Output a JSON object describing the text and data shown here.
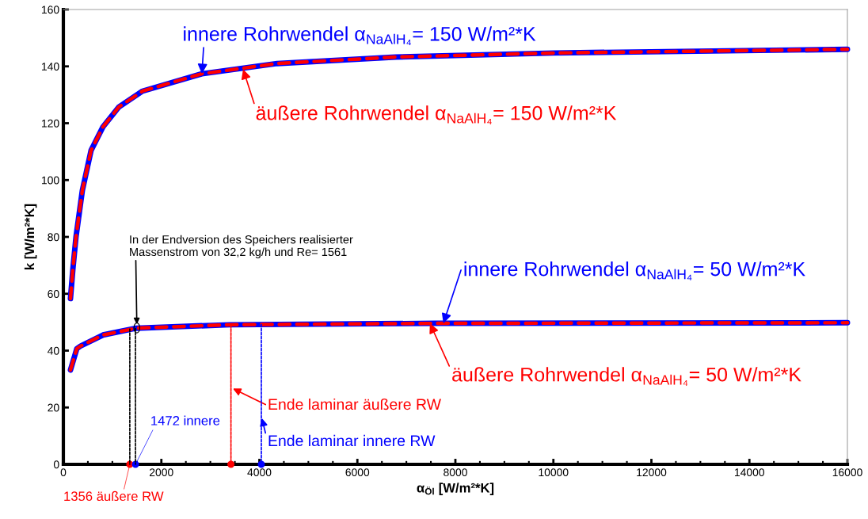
{
  "chart_data": {
    "type": "line",
    "xlabel": "α$_{Öl}$ [W/m²*K]",
    "ylabel": "k [W/m²*K]",
    "xlim": [
      0,
      16000
    ],
    "ylim": [
      0,
      160
    ],
    "xticks": [
      0,
      {
        "value": 500,
        "label": null
      },
      {
        "value": 1000,
        "label": null
      },
      {
        "value": 1500,
        "label": null
      },
      2000,
      {
        "value": 2500,
        "label": null
      },
      {
        "value": 3000,
        "label": null
      },
      {
        "value": 3500,
        "label": null
      },
      4000,
      {
        "value": 4500,
        "label": null
      },
      {
        "value": 5000,
        "label": null
      },
      {
        "value": 5500,
        "label": null
      },
      6000,
      {
        "value": 6500,
        "label": null
      },
      {
        "value": 7000,
        "label": null
      },
      {
        "value": 7500,
        "label": null
      },
      8000,
      {
        "value": 8500,
        "label": null
      },
      {
        "value": 9000,
        "label": null
      },
      {
        "value": 9500,
        "label": null
      },
      10000,
      {
        "value": 10500,
        "label": null
      },
      {
        "value": 11000,
        "label": null
      },
      {
        "value": 11500,
        "label": null
      },
      12000,
      {
        "value": 12500,
        "label": null
      },
      {
        "value": 13000,
        "label": null
      },
      {
        "value": 13500,
        "label": null
      },
      14000,
      {
        "value": 14500,
        "label": null
      },
      {
        "value": 15000,
        "label": null
      },
      {
        "value": 15500,
        "label": null
      },
      16000
    ],
    "yticks": [
      0,
      20,
      40,
      60,
      80,
      100,
      120,
      140,
      160
    ],
    "grid": false,
    "series": [
      {
        "color": "#0000ff",
        "line_style": "solid",
        "x": [
          145,
          194,
          258,
          388,
          565,
          808,
          1131,
          1616,
          2827,
          4362,
          6785,
          10016,
          16000
        ],
        "values": [
          58.3,
          68.6,
          80,
          96.4,
          110.4,
          118.7,
          125.7,
          131.3,
          137.4,
          141,
          143.3,
          144.7,
          146
        ]
      },
      {
        "color": "#ff0000",
        "line_style": "dashed",
        "x": [
          145,
          194,
          258,
          388,
          565,
          808,
          1131,
          1616,
          2827,
          4362,
          6785,
          10016,
          16000
        ],
        "values": [
          58.3,
          68.6,
          80,
          96.4,
          110.4,
          118.7,
          125.7,
          131.3,
          137.4,
          141,
          143.3,
          144.7,
          146
        ]
      },
      {
        "color": "#0000ff",
        "line_style": "solid",
        "x": [
          145,
          275,
          350,
          808,
          1486,
          3392,
          7593,
          16000
        ],
        "values": [
          33.2,
          40.7,
          41.6,
          45.5,
          47.9,
          49.1,
          49.6,
          49.8
        ]
      },
      {
        "color": "#ff0000",
        "line_style": "dashed",
        "x": [
          145,
          275,
          350,
          808,
          1486,
          3392,
          7593,
          16000
        ],
        "values": [
          33.2,
          40.7,
          41.6,
          45.5,
          47.9,
          49.1,
          49.6,
          49.8
        ]
      },
      {
        "color": "#000000",
        "line_style": "dotted",
        "x": [
          1356,
          1356
        ],
        "values": [
          47.6,
          0
        ]
      },
      {
        "color": "#000000",
        "line_style": "dotted",
        "x": [
          1472,
          1472
        ],
        "values": [
          47.8,
          0
        ]
      },
      {
        "color": "#ff0000",
        "line_style": "dotted",
        "x": [
          3420,
          3420
        ],
        "values": [
          49.1,
          0
        ]
      },
      {
        "color": "#0000ff",
        "line_style": "dotted",
        "x": [
          4040,
          4040
        ],
        "values": [
          49.2,
          0
        ]
      },
      {
        "type": "scatter",
        "marker": "circle",
        "color": "#ff0000",
        "x": [
          1356,
          3420
        ],
        "values": [
          0,
          0
        ]
      },
      {
        "type": "scatter",
        "marker": "circle",
        "color": "#0000ff",
        "x": [
          1472,
          4040
        ],
        "values": [
          0,
          0
        ]
      }
    ],
    "annotations": [
      {
        "text": "In der Endversion des Speichers realisierter\nMassenstrom von 32,2 kg/h und Re= 1561",
        "x": 1500,
        "y": 48.5
      },
      {
        "text": "Ende laminar äußere RW",
        "x": 3420,
        "y": 27
      },
      {
        "text": "Ende laminar innere RW",
        "x": 4040,
        "y": 17
      },
      {
        "text": "1472 innere",
        "x": 1472,
        "y": 0
      },
      {
        "text": "1356 äußere RW",
        "x": 1356,
        "y": 0
      },
      {
        "text": "innere Rohrwendel α$_{NaAlH₄}$= 150 W/m²*K",
        "x": 2827,
        "y": 137.4
      },
      {
        "text": "äußere Rohrwendel α$_{NaAlH₄}$= 150 W/m²*K",
        "x": 3667,
        "y": 139
      },
      {
        "text": "innere Rohrwendel α$_{NaAlH₄}$= 50 W/m²*K",
        "x": 7755,
        "y": 49.6
      },
      {
        "text": "äußere Rohrwendel α$_{NaAlH₄}$= 50 W/m²*K",
        "x": 7480,
        "y": 49.6
      }
    ]
  }
}
